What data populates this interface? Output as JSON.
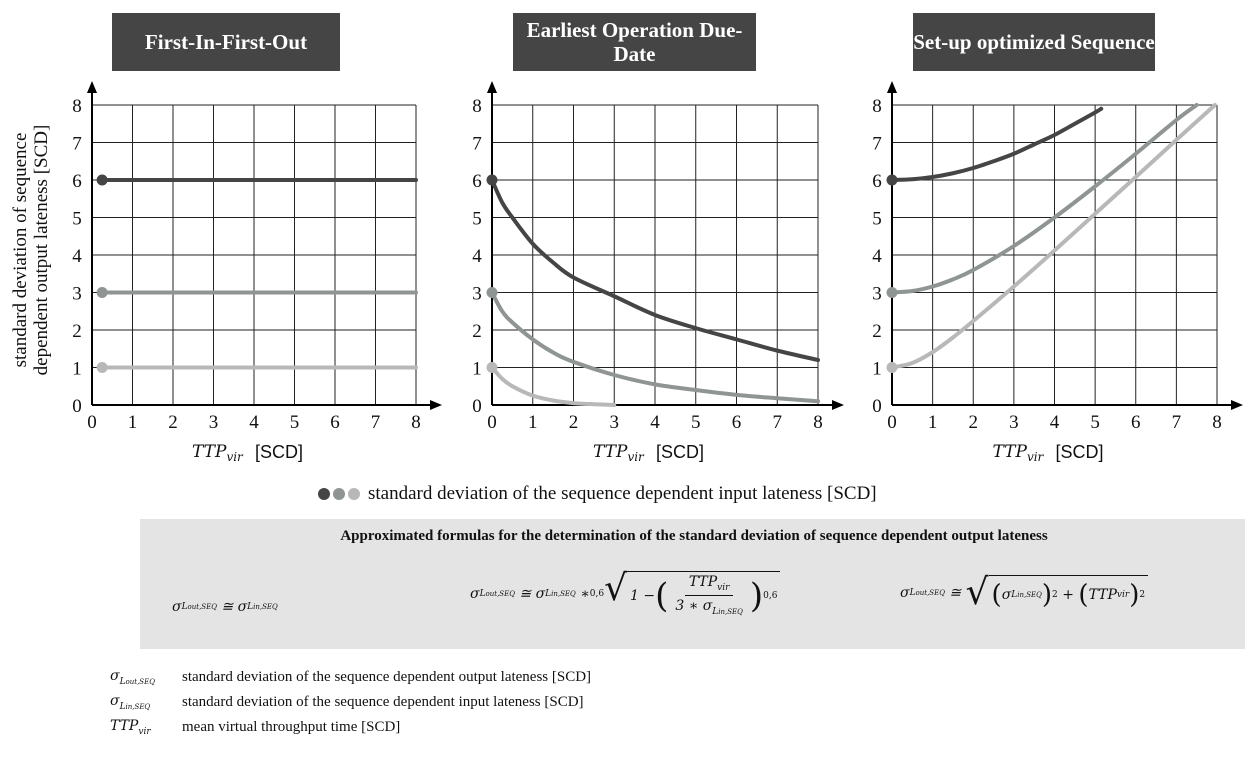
{
  "titles": [
    "First-In-First-Out",
    "Earliest Operation Due-Date",
    "Set-up optimized Sequence"
  ],
  "legend": {
    "text": "standard deviation of the sequence dependent input lateness [SCD]",
    "colors": [
      "#454545",
      "#8f9593",
      "#b8b8b8"
    ]
  },
  "formulas": {
    "title": "Approximated formulas for the determination of the standard deviation of sequence dependent output lateness",
    "lhs": "σ",
    "lhs_sub": "L",
    "lhs_subsub": "out,SEQ",
    "rhs_sub_subsub": "in,SEQ",
    "approx": "≅",
    "f1_exp": "0,6",
    "f1_num": "TTP",
    "f1_num_sub": "vir",
    "f1_den_prefix": "3 ∗ σ",
    "f1_one_minus": "1 −",
    "f1_star": "∗"
  },
  "definitions": [
    {
      "symbol": "σ_L_out,SEQ",
      "text": "standard deviation of  the sequence dependent output lateness [SCD]"
    },
    {
      "symbol": "σ_L_in,SEQ",
      "text": "standard deviation of  the sequence dependent input lateness [SCD]"
    },
    {
      "symbol": "TTP_vir",
      "text": "mean virtual throughput time [SCD]"
    }
  ],
  "def_symbols": {
    "sigma": "σ",
    "L": "L",
    "out": "out,SEQ",
    "in": "in,SEQ",
    "ttp": "TTP",
    "vir": "vir"
  },
  "chart_data": [
    {
      "type": "line",
      "title": "First-In-First-Out",
      "xlabel_main": "TTP",
      "xlabel_sub": "vir",
      "xlabel_unit": "[SCD]",
      "ylabel": [
        "standard deviation of sequence",
        "dependent output lateness [SCD]"
      ],
      "xlim": [
        0,
        8
      ],
      "ylim": [
        0,
        8
      ],
      "xticks": [
        0,
        1,
        2,
        3,
        4,
        5,
        6,
        7,
        8
      ],
      "yticks": [
        0,
        1,
        2,
        3,
        4,
        5,
        6,
        7,
        8
      ],
      "grid": true,
      "series": [
        {
          "color": "#454545",
          "x": [
            0.25,
            8
          ],
          "y": [
            6,
            6
          ]
        },
        {
          "color": "#8f9593",
          "x": [
            0.25,
            8
          ],
          "y": [
            3,
            3
          ]
        },
        {
          "color": "#b8b8b8",
          "x": [
            0.25,
            8
          ],
          "y": [
            1,
            1
          ]
        }
      ]
    },
    {
      "type": "line",
      "title": "Earliest Operation Due-Date",
      "xlabel_main": "TTP",
      "xlabel_sub": "vir",
      "xlabel_unit": "[SCD]",
      "xlim": [
        0,
        8
      ],
      "ylim": [
        0,
        8
      ],
      "xticks": [
        0,
        1,
        2,
        3,
        4,
        5,
        6,
        7,
        8
      ],
      "yticks": [
        0,
        1,
        2,
        3,
        4,
        5,
        6,
        7,
        8
      ],
      "grid": true,
      "series": [
        {
          "color": "#454545",
          "x": [
            0,
            0.25,
            0.5,
            1,
            1.5,
            2,
            3,
            4,
            5,
            6,
            7,
            8
          ],
          "y": [
            6,
            5.4,
            5.0,
            4.3,
            3.8,
            3.4,
            2.9,
            2.4,
            2.05,
            1.75,
            1.45,
            1.2
          ]
        },
        {
          "color": "#8f9593",
          "x": [
            0,
            0.25,
            0.5,
            1,
            1.5,
            2,
            3,
            4,
            5,
            6,
            7,
            8
          ],
          "y": [
            3,
            2.5,
            2.2,
            1.75,
            1.4,
            1.15,
            0.8,
            0.55,
            0.4,
            0.27,
            0.18,
            0.1
          ]
        },
        {
          "color": "#b8b8b8",
          "x": [
            0,
            0.25,
            0.5,
            1,
            1.5,
            2,
            2.5,
            3
          ],
          "y": [
            1,
            0.7,
            0.5,
            0.25,
            0.12,
            0.05,
            0.02,
            0
          ]
        }
      ]
    },
    {
      "type": "line",
      "title": "Set-up optimized Sequence",
      "xlabel_main": "TTP",
      "xlabel_sub": "vir",
      "xlabel_unit": "[SCD]",
      "xlim": [
        0,
        8
      ],
      "ylim": [
        0,
        8
      ],
      "xticks": [
        0,
        1,
        2,
        3,
        4,
        5,
        6,
        7,
        8
      ],
      "yticks": [
        0,
        1,
        2,
        3,
        4,
        5,
        6,
        7,
        8
      ],
      "grid": true,
      "series": [
        {
          "color": "#454545",
          "x": [
            0,
            0.5,
            1,
            1.5,
            2,
            2.5,
            3,
            3.5,
            4,
            4.5,
            5,
            5.15
          ],
          "y": [
            6,
            6.02,
            6.08,
            6.18,
            6.32,
            6.5,
            6.7,
            6.95,
            7.2,
            7.5,
            7.8,
            7.9
          ]
        },
        {
          "color": "#8f9593",
          "x": [
            0,
            0.5,
            1,
            1.5,
            2,
            3,
            4,
            5,
            6,
            7,
            7.5
          ],
          "y": [
            3,
            3.04,
            3.16,
            3.35,
            3.6,
            4.24,
            5.0,
            5.83,
            6.7,
            7.6,
            8
          ]
        },
        {
          "color": "#b8b8b8",
          "x": [
            0,
            0.5,
            1,
            1.5,
            2,
            3,
            4,
            5,
            6,
            7,
            7.95
          ],
          "y": [
            1,
            1.12,
            1.41,
            1.8,
            2.24,
            3.16,
            4.12,
            5.1,
            6.08,
            7.07,
            8
          ]
        }
      ]
    }
  ]
}
